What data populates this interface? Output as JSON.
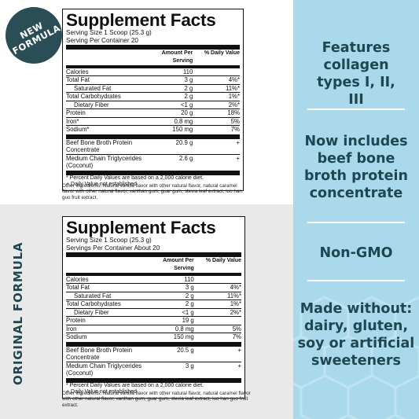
{
  "badge": {
    "line1": "NEW",
    "line2": "FORMULA"
  },
  "side_label": "ORIGINAL FORMULA",
  "new_panel": {
    "title": "Supplement Facts",
    "serving_size": "Serving Size 1 Scoop (25.3 g)",
    "servings_per": "Serving Per Container 20",
    "col_amount": "Amount Per Serving",
    "col_dv": "% Daily Value",
    "rows": [
      {
        "name": "Calories",
        "amount": "110",
        "dv": ""
      },
      {
        "name": "Total Fat",
        "amount": "3 g",
        "dv": "4%*"
      },
      {
        "name": "Saturated Fat",
        "amount": "2 g",
        "dv": "11%*"
      },
      {
        "name": "Total Carbohydrates",
        "amount": "2 g",
        "dv": "1%*"
      },
      {
        "name": "Dietary Fiber",
        "amount": "<1 g",
        "dv": "2%*"
      },
      {
        "name": "Protein",
        "amount": "20 g",
        "dv": "18%"
      },
      {
        "name": "Iron*",
        "amount": "0.8 mg",
        "dv": "5%"
      },
      {
        "name": "Sodium*",
        "amount": "150 mg",
        "dv": "7%"
      }
    ],
    "extra": [
      {
        "name": "Beef Bone Broth Protein Concentrate",
        "amount": "20.9 g",
        "dv": "+"
      },
      {
        "name": "Medium Chain Triglycerides (Coconut)",
        "amount": "2.6 g",
        "dv": "+"
      }
    ],
    "note1": "* Percent Daily Values are based on a 2,000 calorie diet.",
    "note2": "+ Daily Value not established",
    "other": "Other ingredients: Natural vanilla flavor with other natural flavor, natural caramel flavor with other natural flavor, xanthan gum, guar gum, stevia leaf extract, luo han guo fruit extract."
  },
  "orig_panel": {
    "title": "Supplement Facts",
    "serving_size": "Serving Size 1 Scoop (25.3 g)",
    "servings_per": "Servings Per Container About 20",
    "col_amount": "Amount Per Serving",
    "col_dv": "% Daily Value",
    "rows": [
      {
        "name": "Calories",
        "amount": "110",
        "dv": ""
      },
      {
        "name": "Total Fat",
        "amount": "3 g",
        "dv": "4%*"
      },
      {
        "name": "Saturated Fat",
        "amount": "2 g",
        "dv": "11%*"
      },
      {
        "name": "Total Carbohydrates",
        "amount": "2 g",
        "dv": "1%*"
      },
      {
        "name": "Dietary Fiber",
        "amount": "<1 g",
        "dv": "2%*"
      },
      {
        "name": "Protein",
        "amount": "19 g",
        "dv": ""
      },
      {
        "name": "Iron",
        "amount": "0.8 mg",
        "dv": "5%"
      },
      {
        "name": "Sodium",
        "amount": "150 mg",
        "dv": "7%"
      }
    ],
    "extra": [
      {
        "name": "Beef Bone Broth Protein Concentrate",
        "amount": "20.5 g",
        "dv": "+"
      },
      {
        "name": "Medium Chain Triglycerides (Coconut)",
        "amount": "3 g",
        "dv": "+"
      }
    ],
    "note1": "* Percent Daily Values are based on a 2,000 calorie diet.",
    "note2": "+ Daily Value not established.",
    "other": "Other ingredients: Natural vanilla flavor with other natural flavor, natural caramel flavor with other natural flavor, xanthan gum, guar gum, stevia leaf extract, luo han guo fruit extract."
  },
  "features": [
    "Features collagen types I, II, III",
    "Now includes beef bone broth protein concentrate",
    "Non-GMO",
    "Made without: dairy, gluten, soy or artificial sweeteners"
  ],
  "colors": {
    "badge": "#2a4d56",
    "panel": "#a9d9ea",
    "feature_text": "#1f4752"
  }
}
